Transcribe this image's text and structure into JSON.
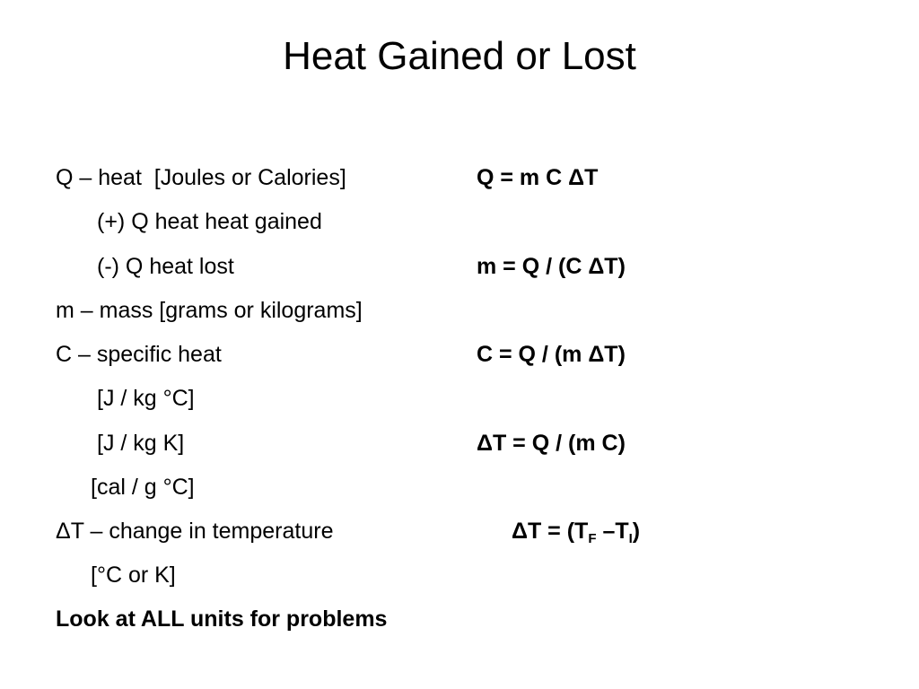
{
  "title": "Heat Gained or Lost",
  "lines": [
    "Q – heat  [Joules or Calories]",
    "(+) Q heat heat gained",
    "(-) Q heat lost",
    "m – mass [grams or kilograms]",
    "C – specific heat",
    "[J / kg °C]",
    "[J / kg K]",
    "[cal / g °C]",
    "ΔT – change in temperature",
    "[°C or K]",
    "Look at ALL units for problems"
  ],
  "formulas": [
    "Q = m C ΔT",
    "m = Q / (C ΔT)",
    "C = Q / (m ΔT)",
    "ΔT = Q / (m C)",
    [
      {
        "text": "ΔT = (T"
      },
      {
        "sub": "F"
      },
      {
        "text": " –T"
      },
      {
        "sub": "I"
      },
      {
        "text": ")"
      }
    ]
  ]
}
